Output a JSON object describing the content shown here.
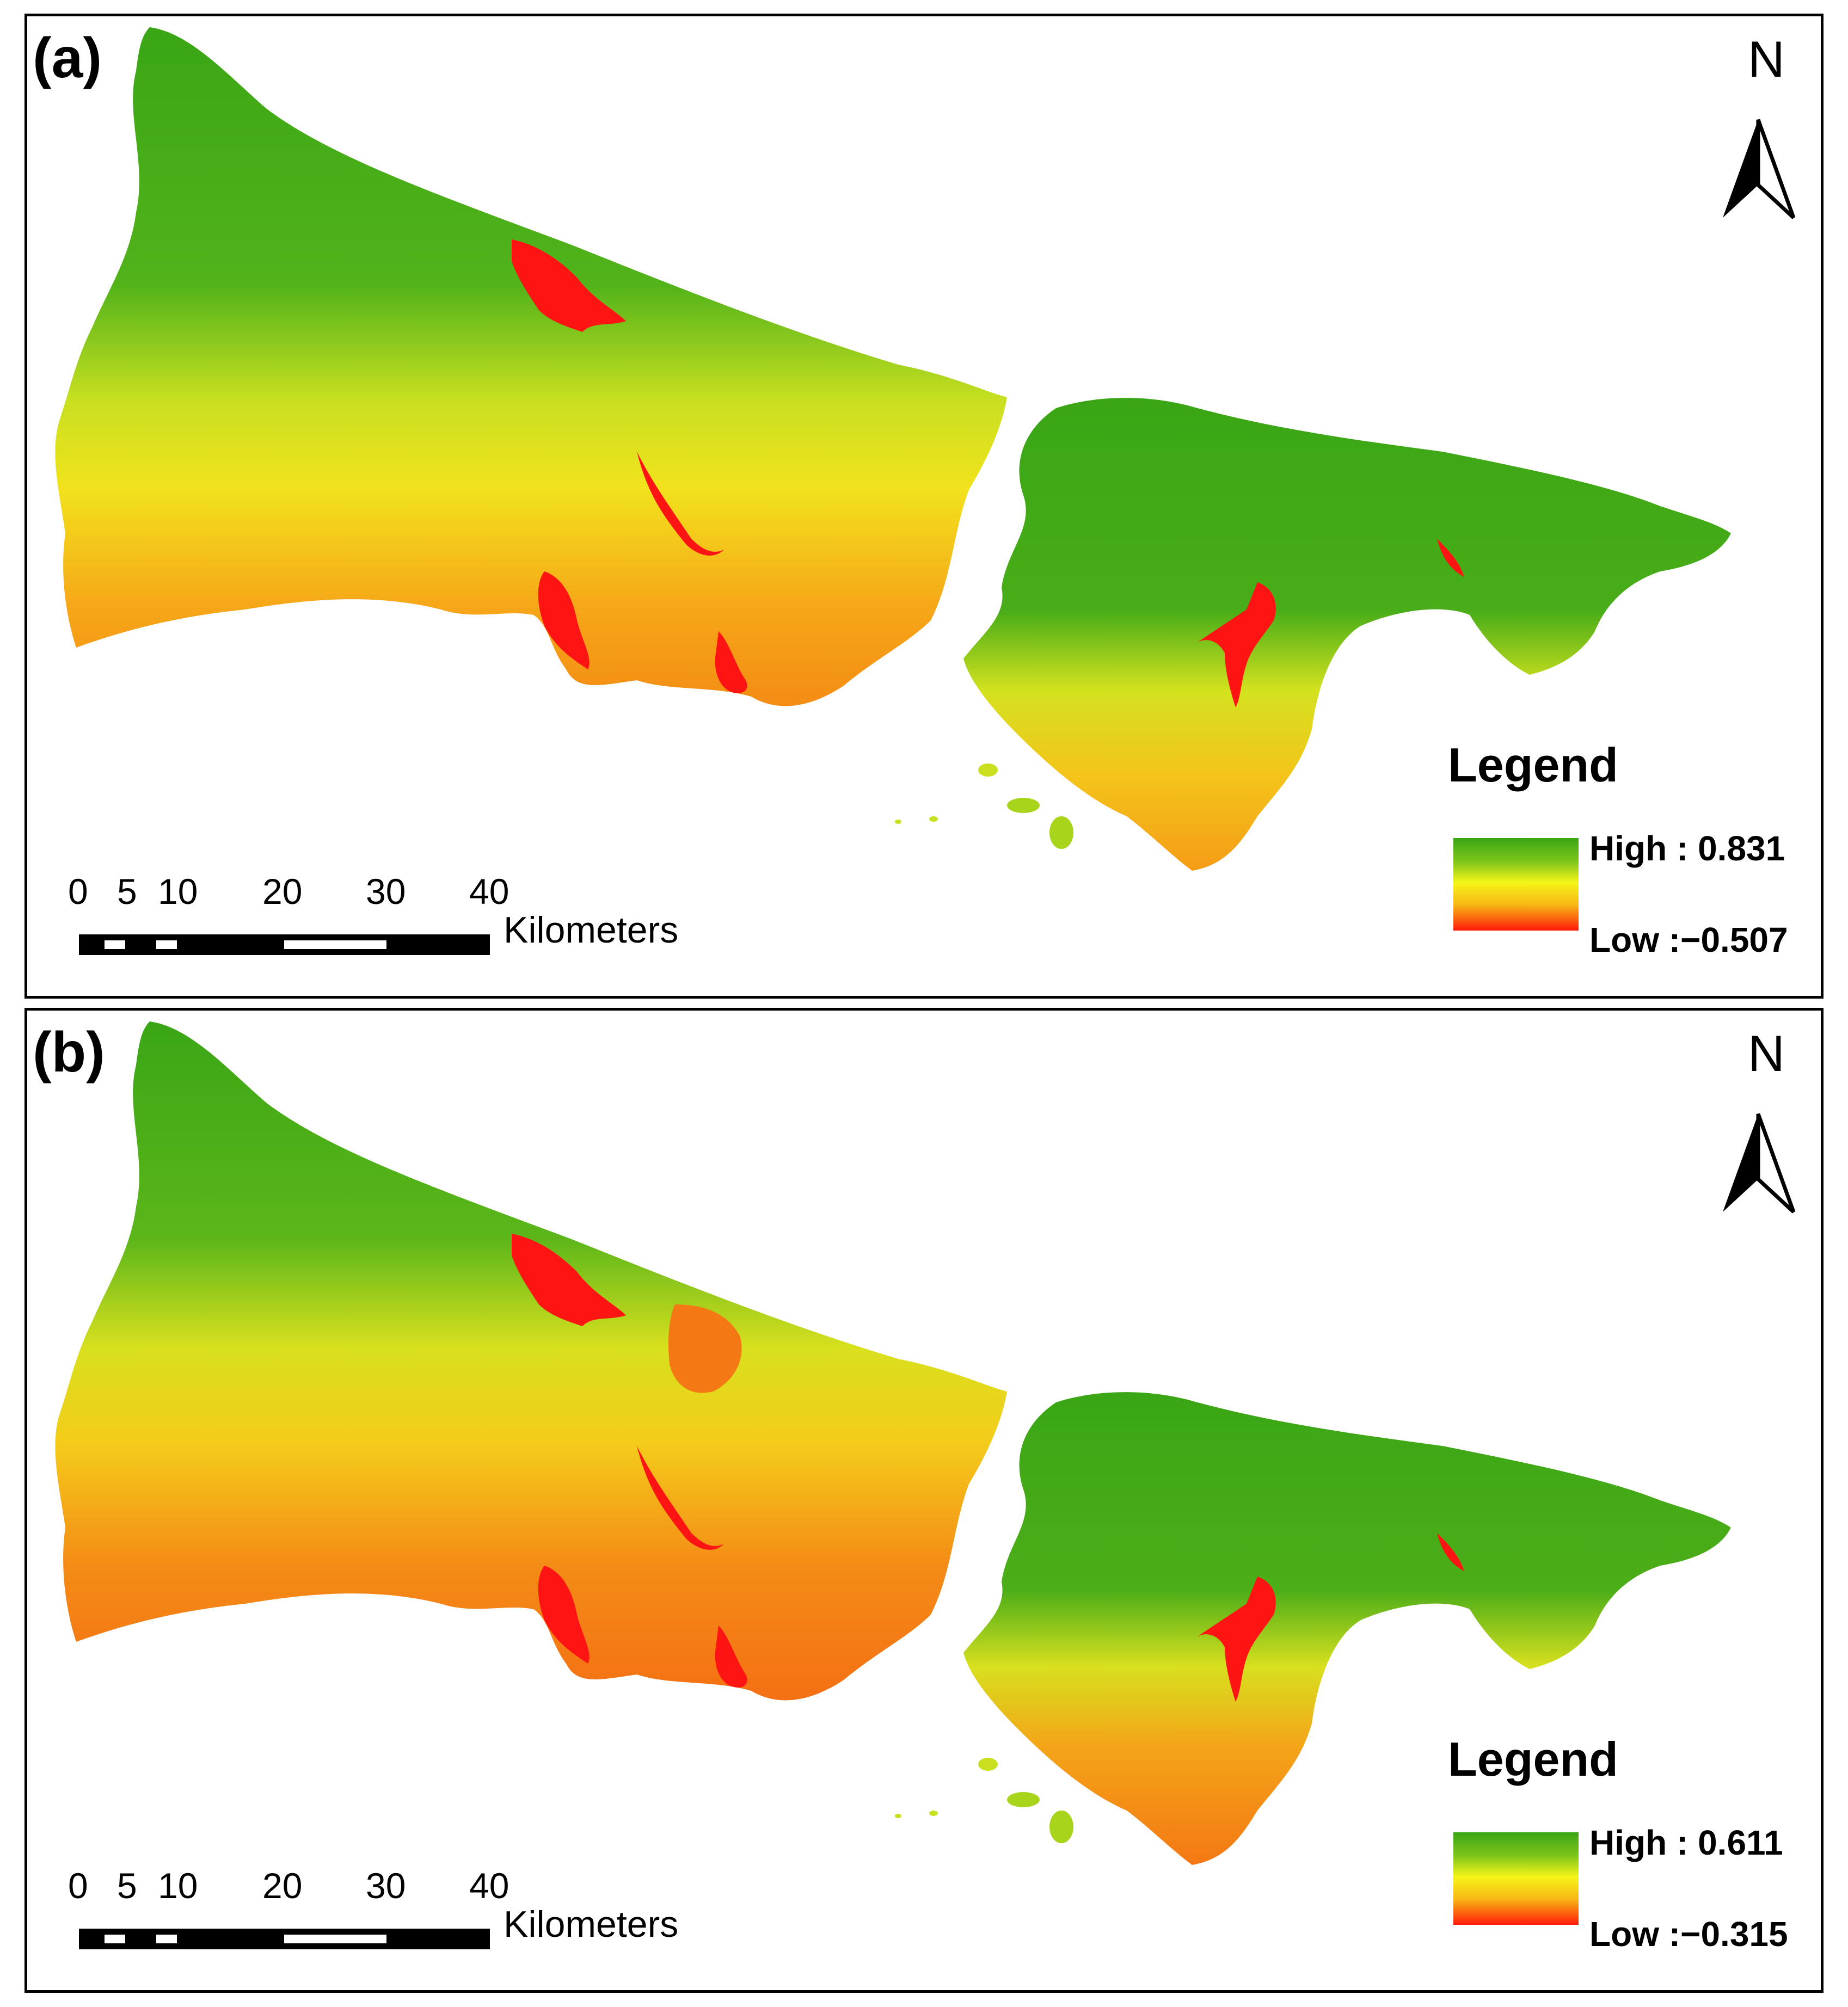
{
  "panels": [
    {
      "label": "(a)",
      "north": "N",
      "legend": {
        "title": "Legend",
        "high": "High : 0.831",
        "low": "Low :−0.507"
      },
      "scale": {
        "ticks": [
          "0",
          "5",
          "10",
          "20",
          "30",
          "40"
        ],
        "unit": "Kilometers"
      }
    },
    {
      "label": "(b)",
      "north": "N",
      "legend": {
        "title": "Legend",
        "high": "High : 0.611",
        "low": "Low :−0.315"
      },
      "scale": {
        "ticks": [
          "0",
          "5",
          "10",
          "20",
          "30",
          "40"
        ],
        "unit": "Kilometers"
      }
    }
  ],
  "colors": {
    "high": "#3aa615",
    "mid": "#f2f218",
    "low": "#ff1a0a",
    "water": "#ff1414",
    "frame": "#000000"
  }
}
